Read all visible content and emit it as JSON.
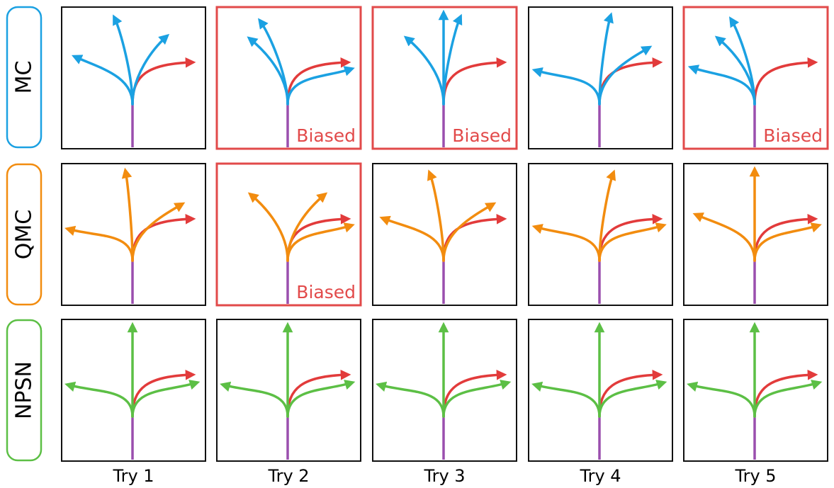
{
  "colors": {
    "MC": "#1ba1e2",
    "QMC": "#f28c0f",
    "NPSN": "#5cbf45",
    "target": "#e23b3b",
    "stem": "#9a4fae",
    "frame": "#111111",
    "biased_frame": "#e24a4a"
  },
  "rows": [
    {
      "label": "MC",
      "color_key": "MC"
    },
    {
      "label": "QMC",
      "color_key": "QMC"
    },
    {
      "label": "NPSN",
      "color_key": "NPSN"
    }
  ],
  "columns": [
    "Try 1",
    "Try 2",
    "Try 3",
    "Try 4",
    "Try 5"
  ],
  "biased_text": "Biased",
  "cells": [
    [
      {
        "biased": false,
        "arrow_angles_deg": [
          153,
          103,
          58
        ]
      },
      {
        "biased": true,
        "arrow_angles_deg": [
          126,
          110,
          10
        ]
      },
      {
        "biased": true,
        "arrow_angles_deg": [
          125,
          90,
          78
        ]
      },
      {
        "biased": false,
        "arrow_angles_deg": [
          172,
          82,
          40
        ]
      },
      {
        "biased": true,
        "arrow_angles_deg": [
          168,
          125,
          107
        ]
      }
    ],
    [
      {
        "biased": false,
        "arrow_angles_deg": [
          175,
          95,
          40
        ]
      },
      {
        "biased": true,
        "arrow_angles_deg": [
          125,
          55,
          10
        ]
      },
      {
        "biased": false,
        "arrow_angles_deg": [
          160,
          100,
          40
        ]
      },
      {
        "biased": false,
        "arrow_angles_deg": [
          172,
          80,
          10
        ]
      },
      {
        "biased": false,
        "arrow_angles_deg": [
          155,
          90,
          10
        ]
      }
    ],
    [
      {
        "biased": false,
        "arrow_angles_deg": [
          175,
          90,
          8
        ]
      },
      {
        "biased": false,
        "arrow_angles_deg": [
          175,
          90,
          8
        ]
      },
      {
        "biased": false,
        "arrow_angles_deg": [
          175,
          90,
          8
        ]
      },
      {
        "biased": false,
        "arrow_angles_deg": [
          175,
          90,
          8
        ]
      },
      {
        "biased": false,
        "arrow_angles_deg": [
          175,
          90,
          8
        ]
      }
    ]
  ],
  "target_angle_deg": 0
}
